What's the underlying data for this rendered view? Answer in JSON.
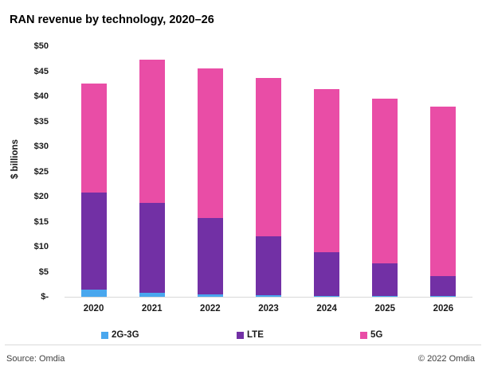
{
  "title": "RAN revenue by technology, 2020–26",
  "y_axis_title": "$ billions",
  "chart_data": {
    "type": "bar",
    "stacked": true,
    "title": "RAN revenue by technology, 2020–26",
    "ylabel": "$ billions",
    "xlabel": "",
    "ylim": [
      0,
      50
    ],
    "ytick_step": 5,
    "grid": false,
    "legend_position": "bottom",
    "yticks": [
      {
        "value": 0,
        "label": "$-"
      },
      {
        "value": 5,
        "label": "$5"
      },
      {
        "value": 10,
        "label": "$10"
      },
      {
        "value": 15,
        "label": "$15"
      },
      {
        "value": 20,
        "label": "$20"
      },
      {
        "value": 25,
        "label": "$25"
      },
      {
        "value": 30,
        "label": "$30"
      },
      {
        "value": 35,
        "label": "$35"
      },
      {
        "value": 40,
        "label": "$40"
      },
      {
        "value": 45,
        "label": "$45"
      },
      {
        "value": 50,
        "label": "$50"
      }
    ],
    "categories": [
      "2020",
      "2021",
      "2022",
      "2023",
      "2024",
      "2025",
      "2026"
    ],
    "series": [
      {
        "name": "2G-3G",
        "color": "#49A7EE",
        "values": [
          1.5,
          0.8,
          0.5,
          0.3,
          0.2,
          0.1,
          0.1
        ]
      },
      {
        "name": "LTE",
        "color": "#7230A5",
        "values": [
          19.3,
          17.9,
          15.2,
          11.7,
          8.7,
          6.5,
          4.1
        ]
      },
      {
        "name": "5G",
        "color": "#E94DA6",
        "values": [
          21.7,
          28.6,
          29.9,
          31.6,
          32.6,
          33.0,
          33.7
        ]
      }
    ],
    "totals": [
      42.5,
      47.3,
      45.6,
      43.6,
      41.5,
      39.6,
      37.9
    ]
  },
  "legend": {
    "items": [
      {
        "label": "2G-3G",
        "color": "#49A7EE"
      },
      {
        "label": "LTE",
        "color": "#7230A5"
      },
      {
        "label": "5G",
        "color": "#E94DA6"
      }
    ]
  },
  "footer": {
    "source": "Source: Omdia",
    "copyright": "© 2022 Omdia"
  }
}
